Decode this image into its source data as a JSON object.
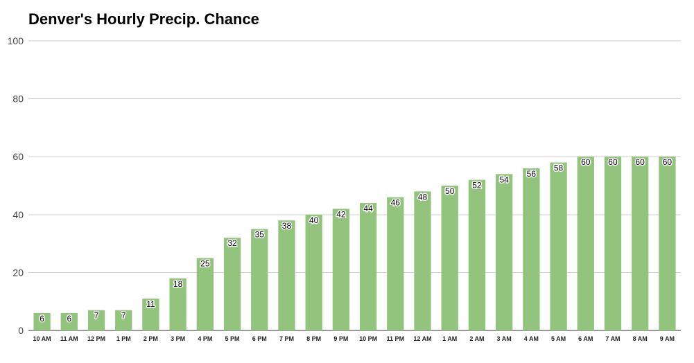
{
  "chart_data": {
    "type": "bar",
    "title": "Denver's Hourly Precip. Chance",
    "xlabel": "",
    "ylabel": "",
    "ylim": [
      0,
      100
    ],
    "yticks": [
      0,
      20,
      40,
      60,
      80,
      100
    ],
    "grid": true,
    "legend": "none",
    "bar_color": "#93c47d",
    "categories": [
      "10 AM",
      "11 AM",
      "12 PM",
      "1 PM",
      "2 PM",
      "3 PM",
      "4 PM",
      "5 PM",
      "6 PM",
      "7 PM",
      "8 PM",
      "9 PM",
      "10 PM",
      "11 PM",
      "12 AM",
      "1 AM",
      "2 AM",
      "3 AM",
      "4 AM",
      "5 AM",
      "6 AM",
      "7 AM",
      "8 AM",
      "9 AM"
    ],
    "values": [
      6,
      6,
      7,
      7,
      11,
      18,
      25,
      32,
      35,
      38,
      40,
      42,
      44,
      46,
      48,
      50,
      52,
      54,
      56,
      58,
      60,
      60,
      60,
      60
    ]
  }
}
